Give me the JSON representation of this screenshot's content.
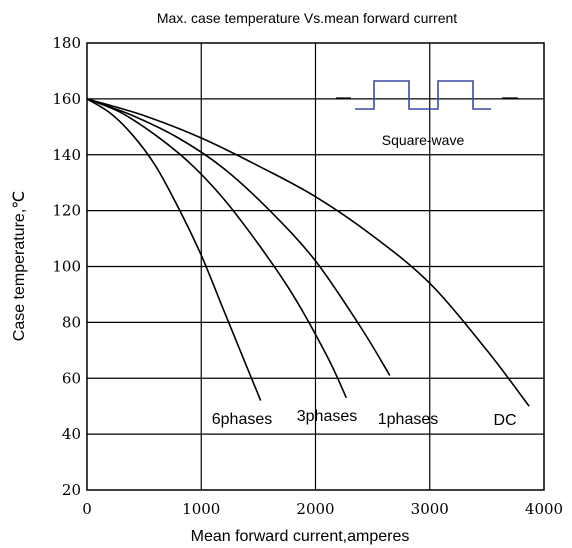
{
  "chart_data": {
    "type": "line",
    "title": "Max. case temperature Vs.mean forward current",
    "xlabel": "Mean forward current,amperes",
    "ylabel": "Case temperature,℃",
    "xlim": [
      0,
      4000
    ],
    "ylim": [
      20,
      180
    ],
    "xticks": [
      0,
      1000,
      2000,
      3000,
      4000
    ],
    "yticks": [
      20,
      40,
      60,
      80,
      100,
      120,
      140,
      160,
      180
    ],
    "grid": true,
    "series": [
      {
        "name": "6phases",
        "x": [
          0,
          200,
          400,
          600,
          800,
          1000,
          1200,
          1400,
          1520
        ],
        "y": [
          160,
          155,
          147,
          136,
          121,
          104,
          84,
          64,
          52
        ]
      },
      {
        "name": "3phases",
        "x": [
          0,
          300,
          600,
          900,
          1200,
          1500,
          1800,
          2100,
          2270
        ],
        "y": [
          160,
          155,
          147,
          137,
          124,
          108,
          90,
          68,
          53
        ]
      },
      {
        "name": "1phases",
        "x": [
          0,
          400,
          800,
          1200,
          1600,
          2000,
          2400,
          2650
        ],
        "y": [
          160,
          154,
          146,
          135,
          120,
          102,
          78,
          61
        ]
      },
      {
        "name": "DC",
        "x": [
          0,
          500,
          1000,
          1500,
          2000,
          2500,
          3000,
          3500,
          3870
        ],
        "y": [
          160,
          154,
          146,
          136,
          125,
          111,
          94,
          70,
          50
        ]
      }
    ],
    "annotation": {
      "label": "Square-wave",
      "color": "#3a4aa8"
    }
  }
}
